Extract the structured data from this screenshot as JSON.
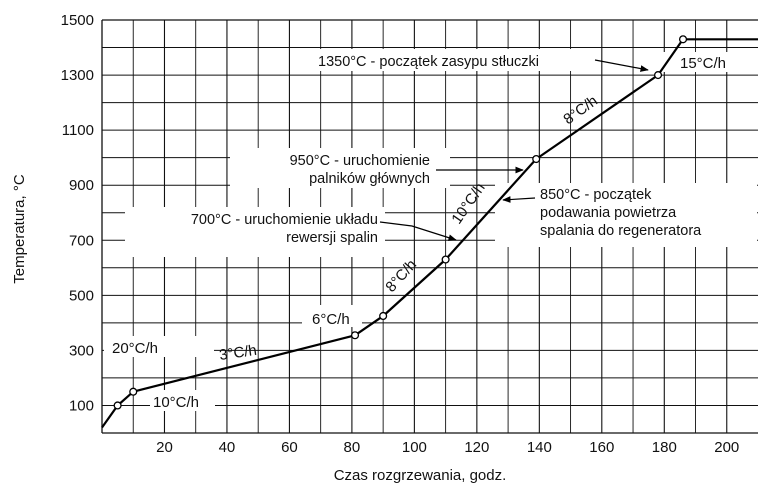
{
  "chart_data": {
    "type": "line",
    "xlabel": "Czas rozgrzewania, godz.",
    "ylabel": "Temperatura, °C",
    "xlim": [
      0,
      210
    ],
    "ylim": [
      0,
      1500
    ],
    "x_ticks": [
      "20",
      "40",
      "60",
      "80",
      "100",
      "120",
      "140",
      "160",
      "180",
      "200"
    ],
    "y_ticks": [
      "100",
      "300",
      "500",
      "700",
      "900",
      "1100",
      "1300",
      "1500"
    ],
    "grid": true,
    "series": [
      {
        "x": [
          0,
          5,
          10,
          81,
          90,
          110,
          139,
          178,
          186,
          210
        ],
        "y": [
          20,
          100,
          150,
          355,
          425,
          630,
          995,
          1300,
          1430,
          1430
        ],
        "markers_at": [
          1,
          2,
          3,
          4,
          5,
          6,
          7,
          8
        ]
      }
    ],
    "rate_labels": [
      {
        "text": "20°C/h"
      },
      {
        "text": "10°C/h"
      },
      {
        "text": "3°C/h"
      },
      {
        "text": "6°C/h"
      },
      {
        "text": "8°C/h"
      },
      {
        "text": "10°C/h"
      },
      {
        "text": "8°C/h"
      },
      {
        "text": "15°C/h"
      }
    ],
    "annotations": [
      {
        "lines": [
          "1350°C - początek zasypu stłuczki"
        ]
      },
      {
        "lines": [
          "950°C - uruchomienie",
          "palników głównych"
        ]
      },
      {
        "lines": [
          "850°C - początek",
          "podawania  powietrza",
          "spalania do regeneratora"
        ]
      },
      {
        "lines": [
          "700°C - uruchomienie układu",
          "rewersji spalin"
        ]
      }
    ]
  }
}
